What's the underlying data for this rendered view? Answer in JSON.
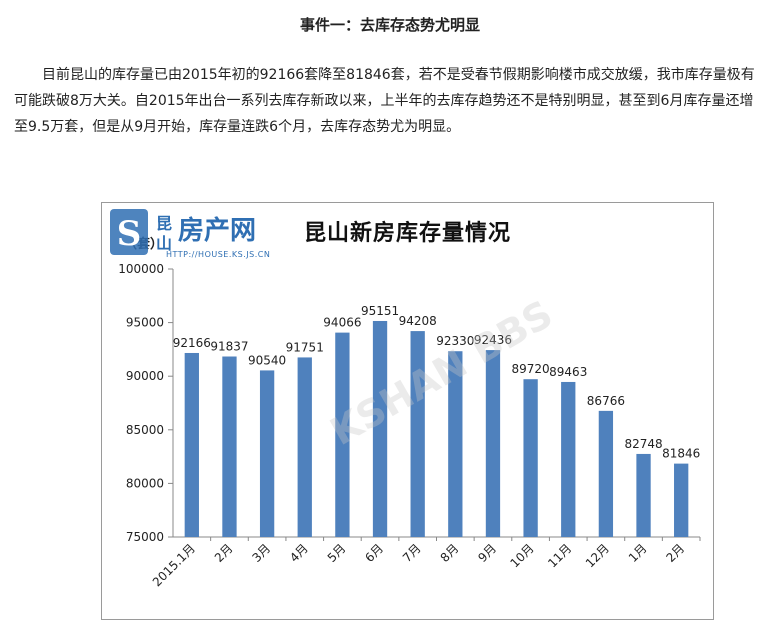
{
  "article": {
    "heading": "事件一：去库存态势尤明显",
    "paragraph": "目前昆山的库存量已由2015年初的92166套降至81846套，若不是受春节假期影响楼市成交放缓，我市库存量极有可能跌破8万大关。自2015年出台一系列去库存新政以来，上半年的去库存趋势还不是特别明显，甚至到6月库存量还增至9.5万套，但是从9月开始，库存量连跌6个月，去库存态势尤为明显。"
  },
  "chart_data": {
    "type": "bar",
    "title": "昆山新房库存量情况",
    "unit_label": "（套）",
    "categories": [
      "2015.1月",
      "2月",
      "3月",
      "4月",
      "5月",
      "6月",
      "7月",
      "8月",
      "9月",
      "10月",
      "11月",
      "12月",
      "1月",
      "2月"
    ],
    "values": [
      92166,
      91837,
      90540,
      91751,
      94066,
      95151,
      94208,
      92330,
      92436,
      89720,
      89463,
      86766,
      82748,
      81846
    ],
    "ylim": [
      75000,
      100000
    ],
    "yticks": [
      75000,
      80000,
      85000,
      90000,
      95000,
      100000
    ],
    "bar_color": "#4f81bd",
    "grid": false
  },
  "watermark": {
    "name": "昆山房产网",
    "url": "HTTP://HOUSE.KS.JS.CN",
    "diagonal": "KSHAN BBS"
  }
}
